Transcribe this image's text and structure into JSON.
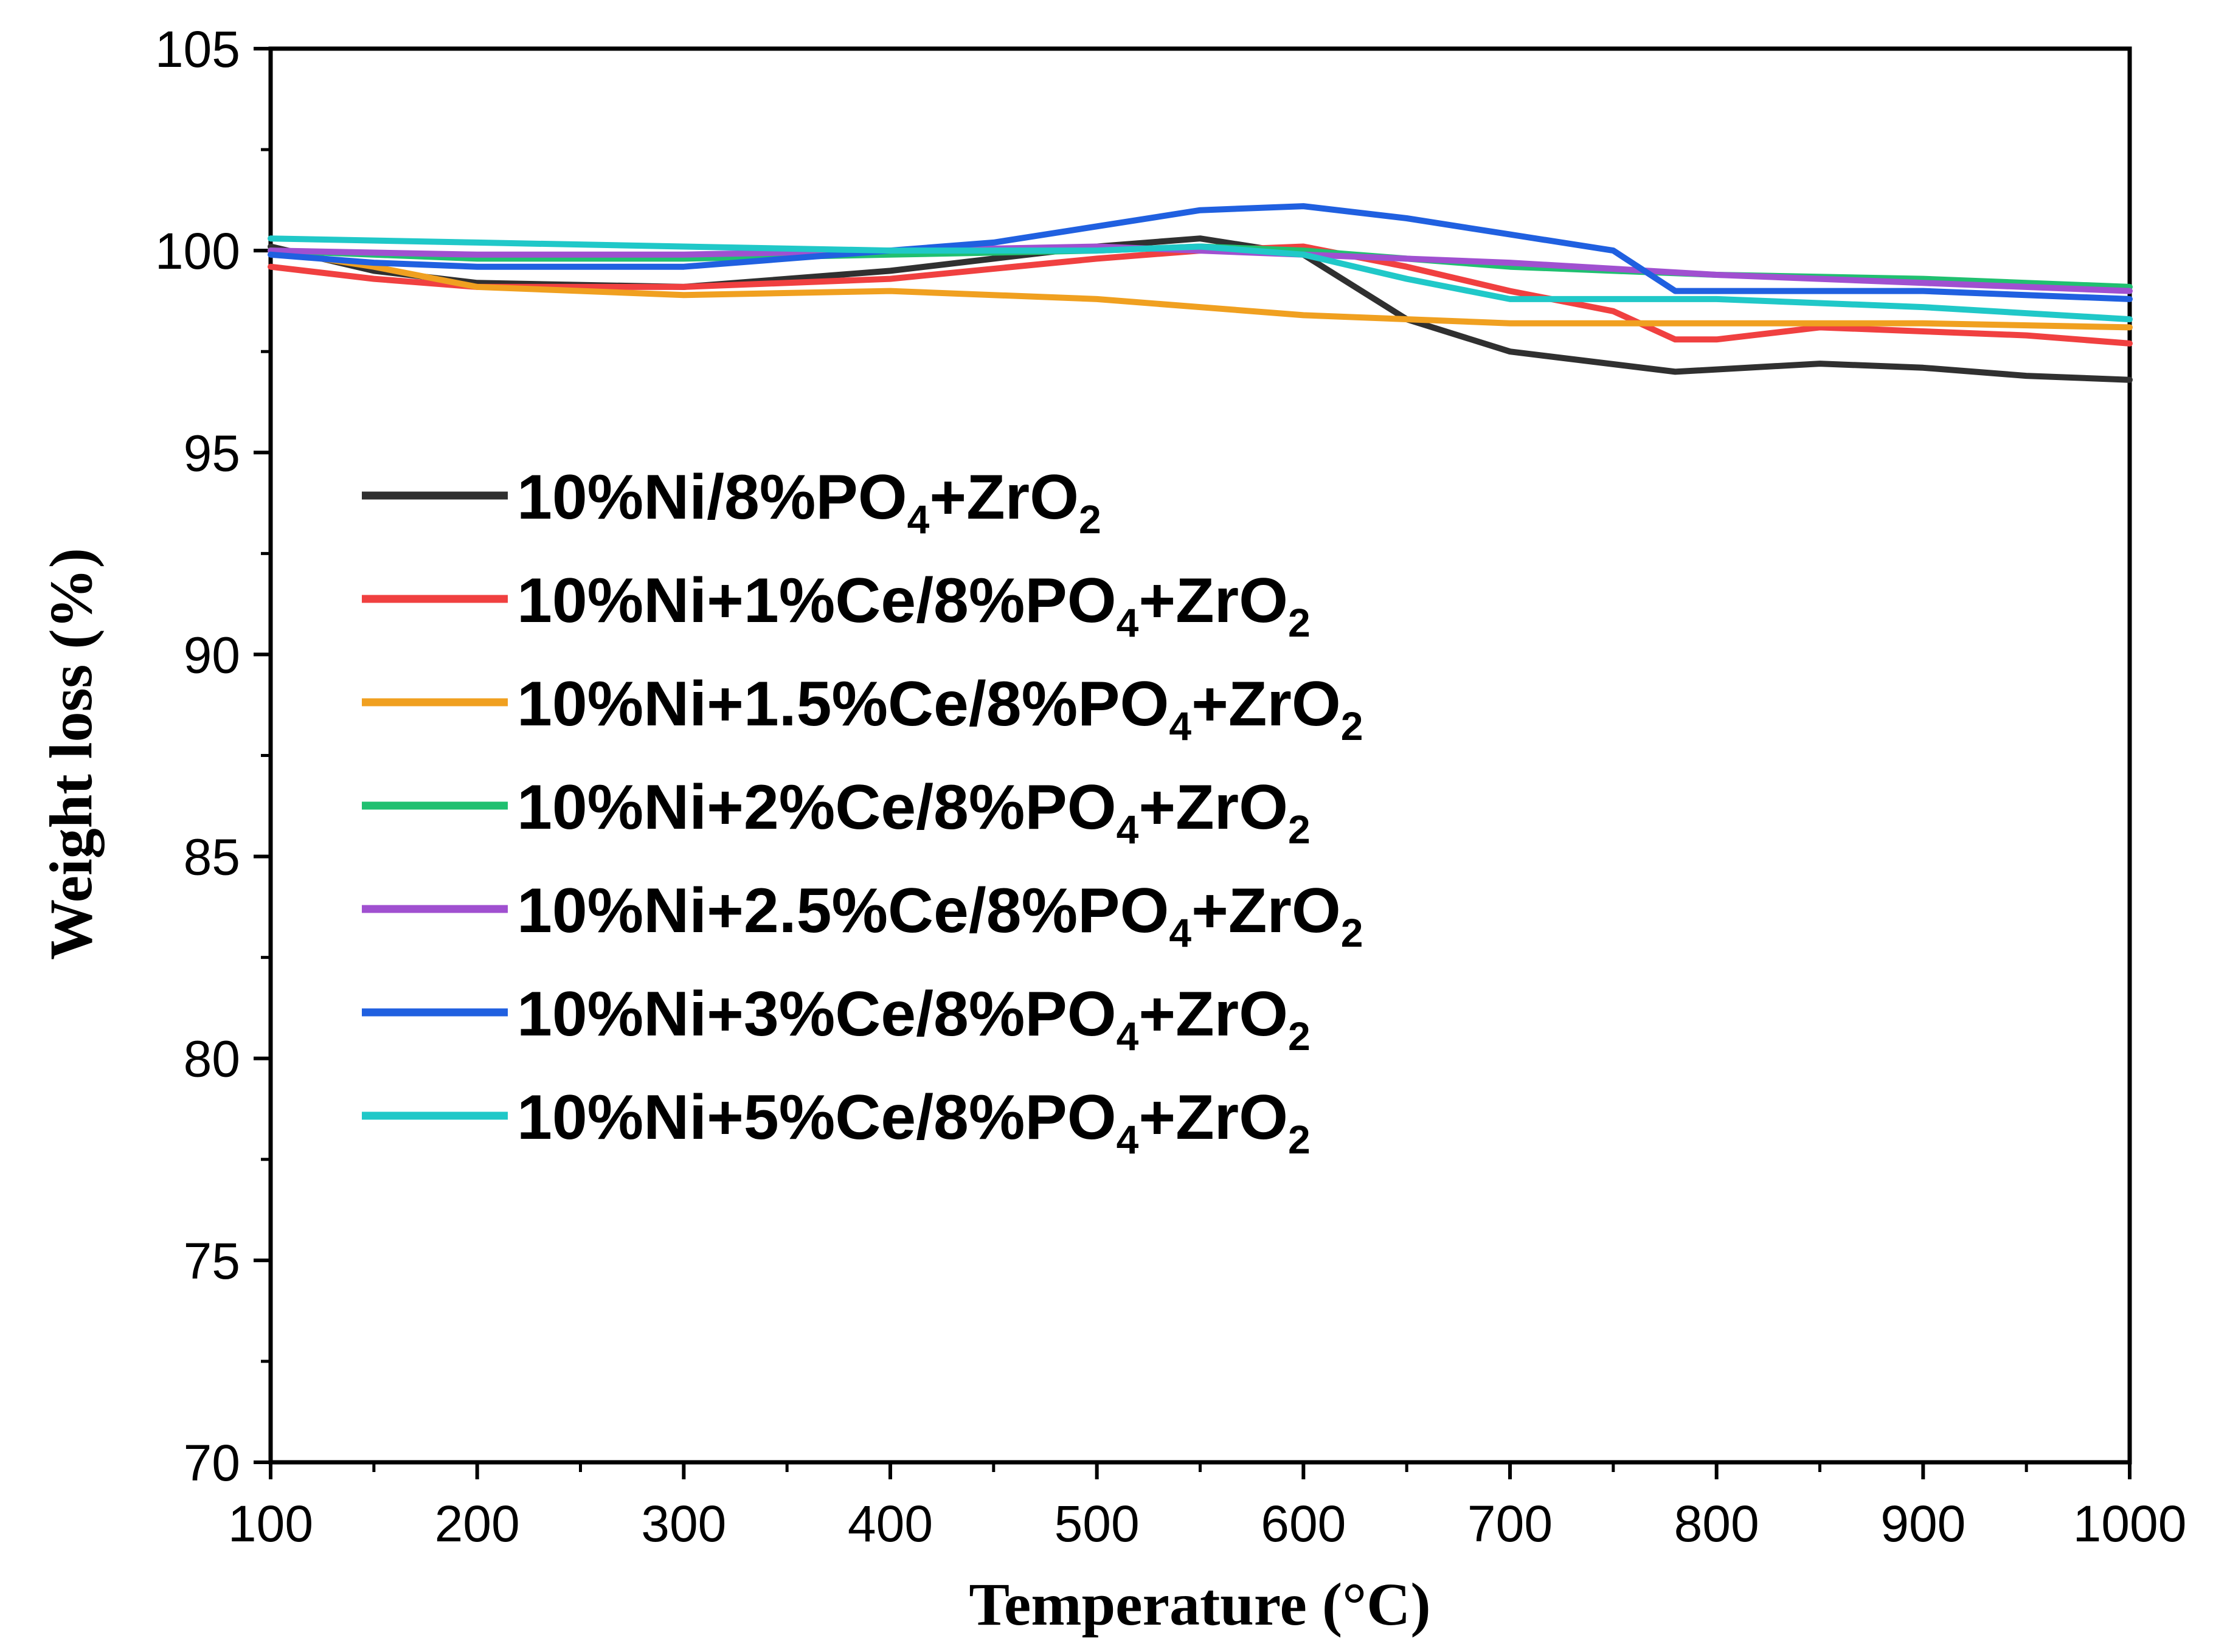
{
  "chart_data": {
    "type": "line",
    "title": "",
    "xlabel": "Temperature (°C)",
    "ylabel": "Weight loss (%)",
    "xlim": [
      100,
      1000
    ],
    "ylim": [
      70,
      105
    ],
    "xticks": [
      "100",
      "200",
      "300",
      "400",
      "500",
      "600",
      "700",
      "800",
      "900",
      "1000"
    ],
    "yticks": [
      "70",
      "75",
      "80",
      "85",
      "90",
      "95",
      "100",
      "105"
    ],
    "legend_position": "center-left",
    "series": [
      {
        "name": "10%Ni/8%PO4+ZrO2",
        "label_parts": [
          "10%Ni/8%PO",
          "4",
          "+ZrO",
          "2"
        ],
        "color": "#303030",
        "x": [
          100,
          150,
          200,
          300,
          400,
          450,
          500,
          550,
          600,
          650,
          700,
          780,
          850,
          900,
          950,
          1000
        ],
        "y": [
          100.1,
          99.5,
          99.2,
          99.1,
          99.5,
          99.8,
          100.1,
          100.3,
          99.9,
          98.3,
          97.5,
          97.0,
          97.2,
          97.1,
          96.9,
          96.8
        ]
      },
      {
        "name": "10%Ni+1%Ce/8%PO4+ZrO2",
        "label_parts": [
          "10%Ni+1%Ce/8%PO",
          "4",
          "+ZrO",
          "2"
        ],
        "color": "#f04040",
        "x": [
          100,
          150,
          200,
          300,
          400,
          500,
          550,
          600,
          650,
          700,
          750,
          780,
          800,
          850,
          900,
          950,
          1000
        ],
        "y": [
          99.6,
          99.3,
          99.1,
          99.1,
          99.3,
          99.8,
          100.0,
          100.1,
          99.6,
          99.0,
          98.5,
          97.8,
          97.8,
          98.1,
          98.0,
          97.9,
          97.7
        ]
      },
      {
        "name": "10%Ni+1.5%Ce/8%PO4+ZrO2",
        "label_parts": [
          "10%Ni+1.5%Ce/8%PO",
          "4",
          "+ZrO",
          "2"
        ],
        "color": "#f0a020",
        "x": [
          100,
          150,
          200,
          300,
          400,
          500,
          600,
          700,
          800,
          900,
          1000
        ],
        "y": [
          100.0,
          99.6,
          99.1,
          98.9,
          99.0,
          98.8,
          98.4,
          98.2,
          98.2,
          98.2,
          98.1
        ]
      },
      {
        "name": "10%Ni+2%Ce/8%PO4+ZrO2",
        "label_parts": [
          "10%Ni+2%Ce/8%PO",
          "4",
          "+ZrO",
          "2"
        ],
        "color": "#20c070",
        "x": [
          100,
          200,
          300,
          400,
          500,
          550,
          600,
          700,
          800,
          900,
          1000
        ],
        "y": [
          100.0,
          99.8,
          99.8,
          99.9,
          100.0,
          100.1,
          100.0,
          99.6,
          99.4,
          99.3,
          99.1
        ]
      },
      {
        "name": "10%Ni+2.5%Ce/8%PO4+ZrO2",
        "label_parts": [
          "10%Ni+2.5%Ce/8%PO",
          "4",
          "+ZrO",
          "2"
        ],
        "color": "#a050d0",
        "x": [
          100,
          200,
          300,
          400,
          500,
          600,
          700,
          800,
          900,
          1000
        ],
        "y": [
          100.0,
          99.9,
          99.9,
          100.0,
          100.1,
          99.9,
          99.7,
          99.4,
          99.2,
          99.0
        ]
      },
      {
        "name": "10%Ni+3%Ce/8%PO4+ZrO2",
        "label_parts": [
          "10%Ni+3%Ce/8%PO",
          "4",
          "+ZrO",
          "2"
        ],
        "color": "#2060e0",
        "x": [
          100,
          150,
          200,
          300,
          400,
          450,
          500,
          550,
          600,
          650,
          700,
          750,
          780,
          800,
          900,
          1000
        ],
        "y": [
          99.9,
          99.7,
          99.6,
          99.6,
          100.0,
          100.2,
          100.6,
          101.0,
          101.1,
          100.8,
          100.4,
          100.0,
          99.0,
          99.0,
          99.0,
          98.8
        ]
      },
      {
        "name": "10%Ni+5%Ce/8%PO4+ZrO2",
        "label_parts": [
          "10%Ni+5%Ce/8%PO",
          "4",
          "+ZrO",
          "2"
        ],
        "color": "#20c8c8",
        "x": [
          100,
          200,
          300,
          400,
          500,
          550,
          600,
          650,
          700,
          800,
          900,
          1000
        ],
        "y": [
          100.3,
          100.2,
          100.1,
          100.0,
          100.0,
          100.1,
          99.9,
          99.3,
          98.8,
          98.8,
          98.6,
          98.3
        ]
      }
    ]
  }
}
